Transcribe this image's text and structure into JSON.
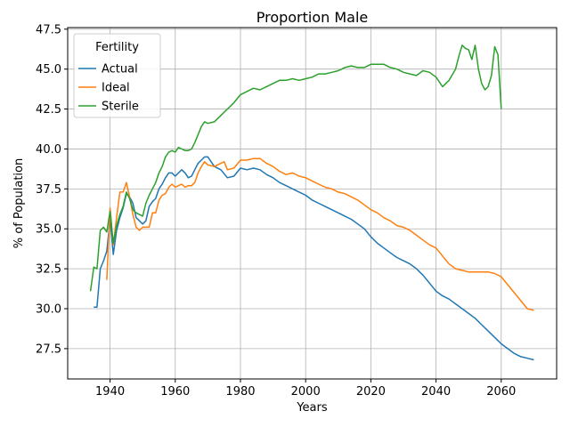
{
  "chart_data": {
    "type": "line",
    "title": "Proportion Male",
    "xlabel": "Years",
    "ylabel": "% of Population",
    "xlim": [
      1927,
      2077
    ],
    "ylim": [
      25.6,
      47.6
    ],
    "xticks": [
      1940,
      1960,
      1980,
      2000,
      2020,
      2040,
      2060
    ],
    "xtick_labels": [
      "1940",
      "1960",
      "1980",
      "2000",
      "2020",
      "2040",
      "2060"
    ],
    "yticks": [
      27.5,
      30.0,
      32.5,
      35.0,
      37.5,
      40.0,
      42.5,
      45.0,
      47.5
    ],
    "ytick_labels": [
      "27.5",
      "30.0",
      "32.5",
      "35.0",
      "37.5",
      "40.0",
      "42.5",
      "45.0",
      "47.5"
    ],
    "grid": true,
    "legend": {
      "title": "Fertility",
      "placement": "top-left"
    },
    "series": [
      {
        "name": "Actual",
        "color": "#1f77b4",
        "x": [
          1935,
          1936,
          1937,
          1938,
          1939,
          1940,
          1941,
          1942,
          1943,
          1944,
          1945,
          1946,
          1947,
          1948,
          1950,
          1951,
          1952,
          1953,
          1954,
          1955,
          1956,
          1957,
          1958,
          1959,
          1960,
          1961,
          1962,
          1963,
          1964,
          1965,
          1966,
          1967,
          1968,
          1969,
          1970,
          1972,
          1974,
          1976,
          1978,
          1980,
          1982,
          1984,
          1986,
          1988,
          1990,
          1992,
          1994,
          1996,
          1998,
          2000,
          2002,
          2004,
          2006,
          2008,
          2010,
          2012,
          2014,
          2016,
          2018,
          2020,
          2022,
          2024,
          2026,
          2028,
          2030,
          2032,
          2034,
          2036,
          2038,
          2040,
          2042,
          2044,
          2046,
          2048,
          2050,
          2052,
          2054,
          2056,
          2058,
          2060,
          2062,
          2064,
          2066,
          2068,
          2070
        ],
        "y": [
          30.1,
          30.1,
          32.5,
          33.0,
          33.6,
          35.6,
          33.4,
          34.9,
          35.7,
          36.3,
          37.2,
          37.0,
          36.6,
          35.7,
          35.3,
          35.5,
          36.4,
          36.7,
          36.9,
          37.5,
          37.8,
          38.2,
          38.5,
          38.5,
          38.3,
          38.5,
          38.7,
          38.5,
          38.2,
          38.3,
          38.7,
          39.1,
          39.3,
          39.5,
          39.5,
          38.9,
          38.7,
          38.2,
          38.3,
          38.8,
          38.7,
          38.8,
          38.7,
          38.4,
          38.2,
          37.9,
          37.7,
          37.5,
          37.3,
          37.1,
          36.8,
          36.6,
          36.4,
          36.2,
          36.0,
          35.8,
          35.6,
          35.3,
          35.0,
          34.5,
          34.1,
          33.8,
          33.5,
          33.2,
          33.0,
          32.8,
          32.5,
          32.1,
          31.6,
          31.1,
          30.8,
          30.6,
          30.3,
          30.0,
          29.7,
          29.4,
          29.0,
          28.6,
          28.2,
          27.8,
          27.5,
          27.2,
          27.0,
          26.9,
          26.8
        ]
      },
      {
        "name": "Ideal",
        "color": "#ff7f0e",
        "x": [
          1939,
          1940,
          1941,
          1942,
          1943,
          1944,
          1945,
          1946,
          1947,
          1948,
          1949,
          1950,
          1951,
          1952,
          1953,
          1954,
          1955,
          1956,
          1957,
          1958,
          1959,
          1960,
          1961,
          1962,
          1963,
          1964,
          1965,
          1966,
          1967,
          1968,
          1969,
          1970,
          1972,
          1974,
          1975,
          1976,
          1978,
          1980,
          1982,
          1984,
          1986,
          1988,
          1990,
          1992,
          1994,
          1996,
          1998,
          2000,
          2002,
          2004,
          2006,
          2008,
          2010,
          2012,
          2014,
          2016,
          2018,
          2020,
          2022,
          2024,
          2026,
          2028,
          2030,
          2032,
          2034,
          2036,
          2038,
          2040,
          2042,
          2044,
          2046,
          2048,
          2050,
          2052,
          2054,
          2056,
          2058,
          2060,
          2062,
          2064,
          2066,
          2068,
          2070
        ],
        "y": [
          31.8,
          36.3,
          34.0,
          35.7,
          37.3,
          37.3,
          37.9,
          37.0,
          35.9,
          35.1,
          34.9,
          35.1,
          35.1,
          35.1,
          36.0,
          36.0,
          36.8,
          37.1,
          37.2,
          37.6,
          37.8,
          37.6,
          37.7,
          37.8,
          37.6,
          37.7,
          37.7,
          37.9,
          38.5,
          38.9,
          39.2,
          39.0,
          38.9,
          39.1,
          39.2,
          38.7,
          38.8,
          39.3,
          39.3,
          39.4,
          39.4,
          39.1,
          38.9,
          38.6,
          38.4,
          38.5,
          38.3,
          38.2,
          38.0,
          37.8,
          37.6,
          37.5,
          37.3,
          37.2,
          37.0,
          36.8,
          36.5,
          36.2,
          36.0,
          35.7,
          35.5,
          35.2,
          35.1,
          34.9,
          34.6,
          34.3,
          34.0,
          33.8,
          33.3,
          32.8,
          32.5,
          32.4,
          32.3,
          32.3,
          32.3,
          32.3,
          32.2,
          32.0,
          31.5,
          31.0,
          30.5,
          30.0,
          29.9
        ]
      },
      {
        "name": "Sterile",
        "color": "#2ca02c",
        "x": [
          1934,
          1935,
          1936,
          1937,
          1938,
          1939,
          1940,
          1941,
          1942,
          1943,
          1944,
          1945,
          1946,
          1947,
          1948,
          1950,
          1951,
          1952,
          1953,
          1954,
          1955,
          1956,
          1957,
          1958,
          1959,
          1960,
          1961,
          1962,
          1963,
          1964,
          1965,
          1966,
          1967,
          1968,
          1969,
          1970,
          1972,
          1974,
          1976,
          1978,
          1980,
          1982,
          1984,
          1986,
          1988,
          1990,
          1992,
          1994,
          1996,
          1998,
          2000,
          2002,
          2004,
          2006,
          2008,
          2010,
          2012,
          2014,
          2016,
          2018,
          2020,
          2022,
          2024,
          2026,
          2028,
          2030,
          2032,
          2034,
          2036,
          2038,
          2040,
          2042,
          2044,
          2046,
          2047,
          2048,
          2049,
          2050,
          2051,
          2052,
          2053,
          2054,
          2055,
          2056,
          2057,
          2058,
          2059,
          2060
        ],
        "y": [
          31.1,
          32.6,
          32.5,
          34.9,
          35.1,
          34.8,
          36.1,
          34.1,
          35.2,
          35.9,
          36.4,
          37.3,
          36.9,
          36.2,
          36.0,
          35.8,
          36.6,
          37.1,
          37.5,
          37.9,
          38.5,
          38.9,
          39.5,
          39.8,
          39.9,
          39.8,
          40.1,
          40.0,
          39.9,
          39.9,
          40.0,
          40.4,
          40.9,
          41.4,
          41.7,
          41.6,
          41.7,
          42.1,
          42.5,
          42.9,
          43.4,
          43.6,
          43.8,
          43.7,
          43.9,
          44.1,
          44.3,
          44.3,
          44.4,
          44.3,
          44.4,
          44.5,
          44.7,
          44.7,
          44.8,
          44.9,
          45.1,
          45.2,
          45.1,
          45.1,
          45.3,
          45.3,
          45.3,
          45.1,
          45.0,
          44.8,
          44.7,
          44.6,
          44.9,
          44.8,
          44.5,
          43.9,
          44.3,
          45.0,
          45.8,
          46.5,
          46.3,
          46.2,
          45.6,
          46.5,
          45.0,
          44.1,
          43.7,
          43.9,
          44.6,
          46.4,
          45.9,
          42.5
        ]
      }
    ]
  }
}
